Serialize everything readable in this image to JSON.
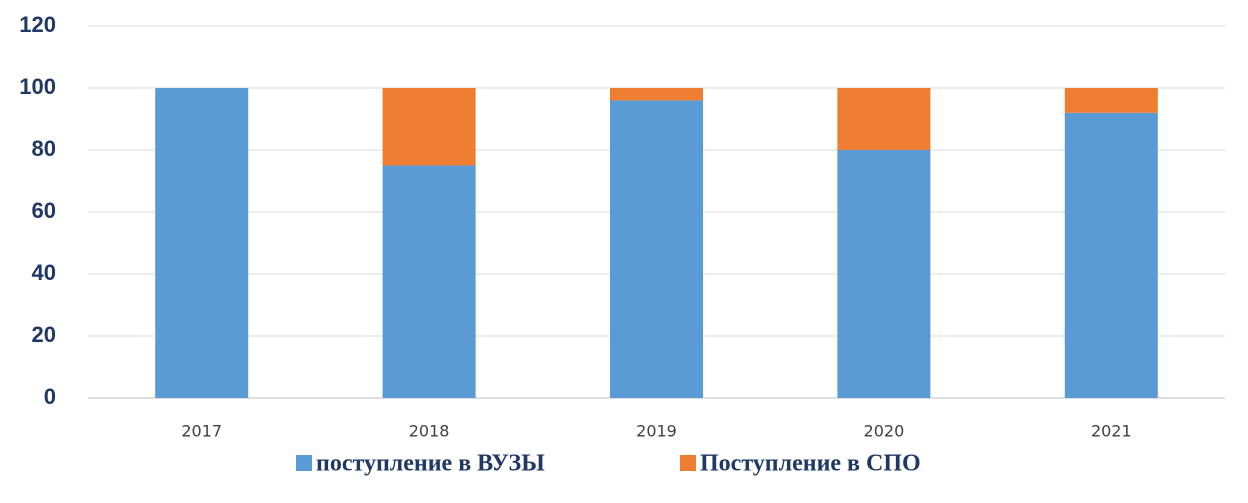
{
  "chart_data": {
    "type": "bar",
    "stacked": true,
    "categories": [
      "2017",
      "2018",
      "2019",
      "2020",
      "2021"
    ],
    "series": [
      {
        "name": "поступление в ВУЗЫ",
        "color": "#5b9bd5",
        "values": [
          100,
          75,
          96,
          80,
          92
        ]
      },
      {
        "name": "Поступление в СПО",
        "color": "#ed7d31",
        "values": [
          0,
          25,
          4,
          20,
          8
        ]
      }
    ],
    "ylim": [
      0,
      120
    ],
    "yticks": [
      0,
      20,
      40,
      60,
      80,
      100,
      120
    ],
    "grid": true,
    "legend": "bottom"
  }
}
